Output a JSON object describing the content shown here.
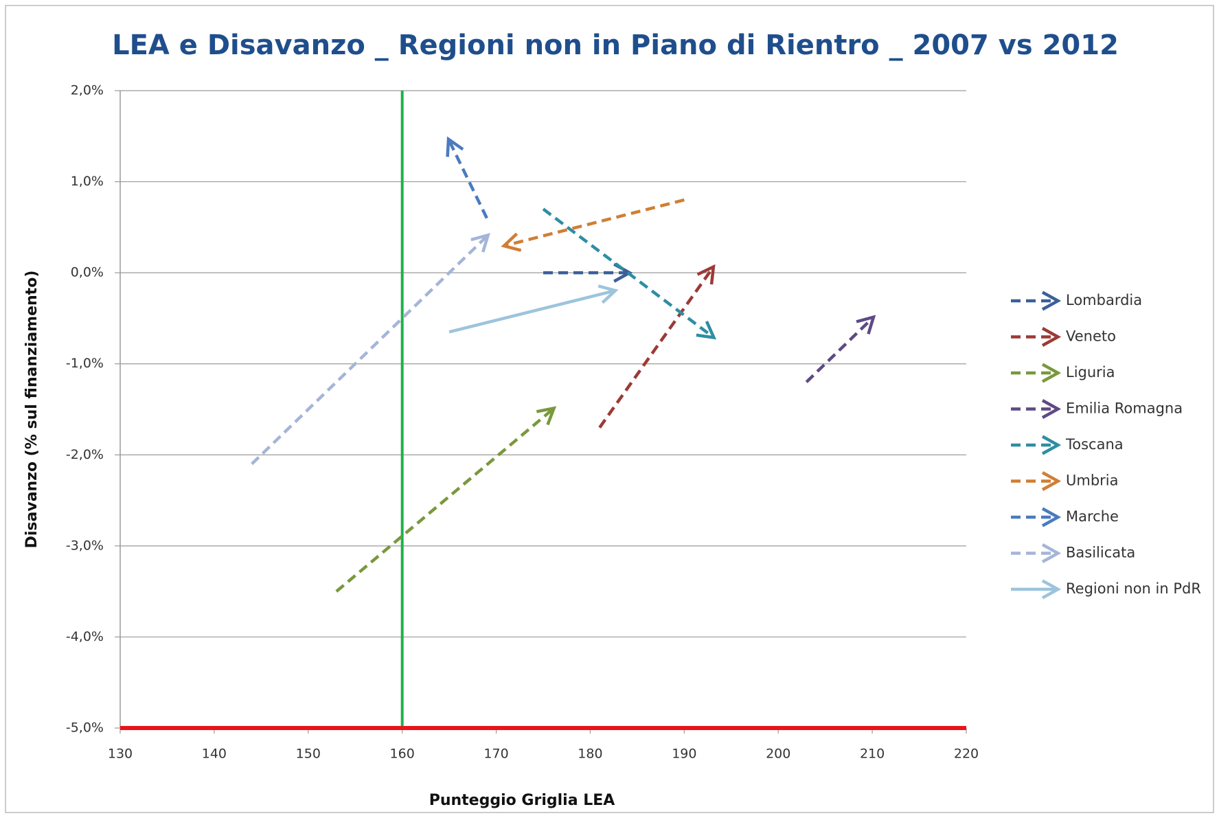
{
  "chart_data": {
    "type": "arrow",
    "title": "LEA e Disavanzo _ Regioni non in Piano di Rientro _ 2007 vs 2012",
    "xlabel": "Punteggio Griglia LEA",
    "ylabel": "Disavanzo (% sul finanziamento)",
    "xlim": [
      130,
      220
    ],
    "xticks": [
      130,
      140,
      150,
      160,
      170,
      180,
      190,
      200,
      210,
      220
    ],
    "ylim": [
      -5,
      2
    ],
    "yticks": [
      {
        "value": -5,
        "label": "-5,0%"
      },
      {
        "value": -4,
        "label": "-4,0%"
      },
      {
        "value": -3,
        "label": "-3,0%"
      },
      {
        "value": -2,
        "label": "-2,0%"
      },
      {
        "value": -1,
        "label": "-1,0%"
      },
      {
        "value": 0,
        "label": "0,0%"
      },
      {
        "value": 1,
        "label": "1,0%"
      },
      {
        "value": 2,
        "label": "2,0%"
      }
    ],
    "grid": true,
    "legend": "right",
    "reference_lines": [
      {
        "axis": "x",
        "value": 160,
        "color": "#1fb04a"
      },
      {
        "axis": "y",
        "value": -5,
        "color": "#e8141a"
      }
    ],
    "series": [
      {
        "name": "Lombardia",
        "color": "#3b5f98",
        "line_style": "dashed",
        "x": [
          175,
          184
        ],
        "values": [
          0,
          0
        ]
      },
      {
        "name": "Veneto",
        "color": "#9c3a36",
        "line_style": "dashed",
        "x": [
          181,
          193
        ],
        "values": [
          -1.7,
          0.05
        ]
      },
      {
        "name": "Liguria",
        "color": "#7a983d",
        "line_style": "dashed",
        "x": [
          153,
          176
        ],
        "values": [
          -3.5,
          -1.5
        ]
      },
      {
        "name": "Emilia Romagna",
        "color": "#5e4985",
        "line_style": "dashed",
        "x": [
          203,
          210
        ],
        "values": [
          -1.2,
          -0.5
        ]
      },
      {
        "name": "Toscana",
        "color": "#2e8ea2",
        "line_style": "dashed",
        "x": [
          175,
          193
        ],
        "values": [
          0.7,
          -0.7
        ]
      },
      {
        "name": "Umbria",
        "color": "#d07e34",
        "line_style": "dashed",
        "x": [
          190,
          171
        ],
        "values": [
          0.8,
          0.3
        ]
      },
      {
        "name": "Marche",
        "color": "#4a7bbf",
        "line_style": "dashed",
        "x": [
          169,
          165
        ],
        "values": [
          0.6,
          1.45
        ]
      },
      {
        "name": "Basilicata",
        "color": "#a5b5d8",
        "line_style": "dashed",
        "x": [
          144,
          169
        ],
        "values": [
          -2.1,
          0.4
        ]
      },
      {
        "name": "Regioni non in PdR",
        "color": "#9cc4dc",
        "line_style": "solid",
        "x": [
          165,
          182.5
        ],
        "values": [
          -0.65,
          -0.2
        ]
      }
    ]
  }
}
